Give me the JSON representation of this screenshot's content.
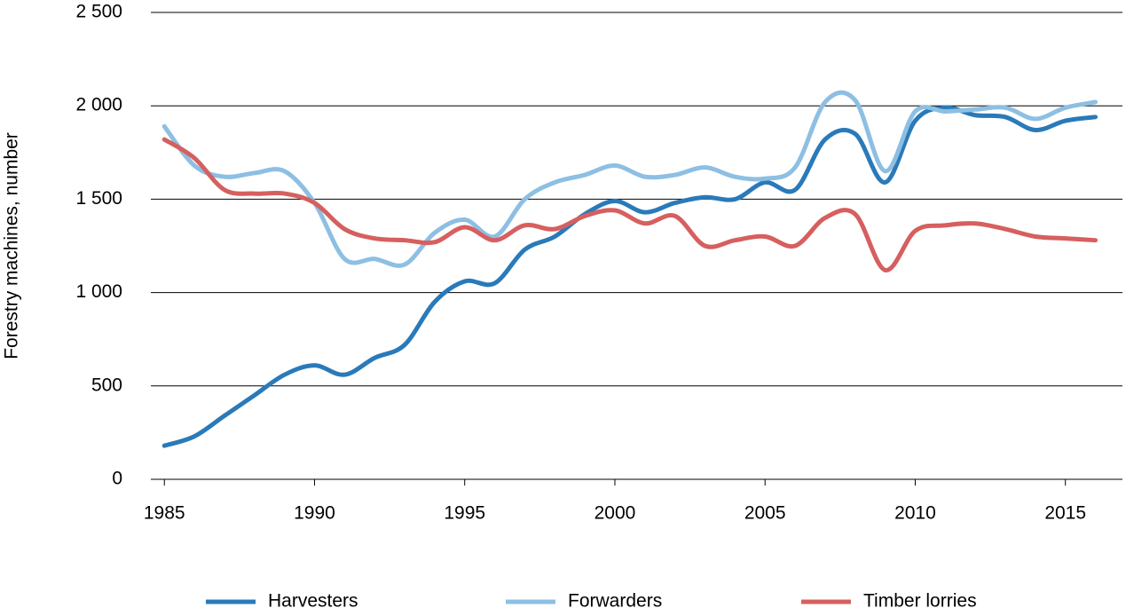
{
  "chart_data": {
    "type": "line",
    "y_label": "Forestry machines, number",
    "x": [
      1985,
      1986,
      1987,
      1988,
      1989,
      1990,
      1991,
      1992,
      1993,
      1994,
      1995,
      1996,
      1997,
      1998,
      1999,
      2000,
      2001,
      2002,
      2003,
      2004,
      2005,
      2006,
      2007,
      2008,
      2009,
      2010,
      2011,
      2012,
      2013,
      2014,
      2015,
      2016
    ],
    "series": [
      {
        "name": "Harvesters",
        "color": "#2a7ab9",
        "values": [
          180,
          230,
          340,
          450,
          560,
          610,
          560,
          650,
          720,
          950,
          1060,
          1050,
          1230,
          1300,
          1420,
          1490,
          1430,
          1480,
          1510,
          1500,
          1590,
          1550,
          1820,
          1850,
          1590,
          1920,
          1990,
          1950,
          1940,
          1870,
          1920,
          1940
        ]
      },
      {
        "name": "Forwarders",
        "color": "#8dbfe3",
        "values": [
          1890,
          1680,
          1620,
          1640,
          1650,
          1480,
          1180,
          1180,
          1150,
          1320,
          1390,
          1300,
          1500,
          1590,
          1630,
          1680,
          1620,
          1630,
          1670,
          1620,
          1610,
          1670,
          2020,
          2030,
          1650,
          1970,
          1970,
          1980,
          1990,
          1930,
          1990,
          2020
        ]
      },
      {
        "name": "Timber lorries",
        "color": "#d65f5f",
        "values": [
          1820,
          1720,
          1550,
          1530,
          1530,
          1480,
          1340,
          1290,
          1280,
          1270,
          1350,
          1280,
          1360,
          1340,
          1410,
          1440,
          1370,
          1410,
          1250,
          1280,
          1300,
          1250,
          1400,
          1420,
          1120,
          1330,
          1360,
          1370,
          1340,
          1300,
          1290,
          1280
        ]
      }
    ],
    "xlim": [
      1984.55,
      2016.9
    ],
    "xticks": [
      1985,
      1990,
      1995,
      2000,
      2005,
      2010,
      2015
    ],
    "ylim": [
      0,
      2500
    ],
    "yticks": [
      0,
      500,
      {
        "value": 1000,
        "label": "1 000"
      },
      {
        "value": 1500,
        "label": "1 500"
      },
      {
        "value": 2000,
        "label": "2 000"
      },
      {
        "value": 2500,
        "label": "2 500"
      }
    ],
    "grid": true
  }
}
